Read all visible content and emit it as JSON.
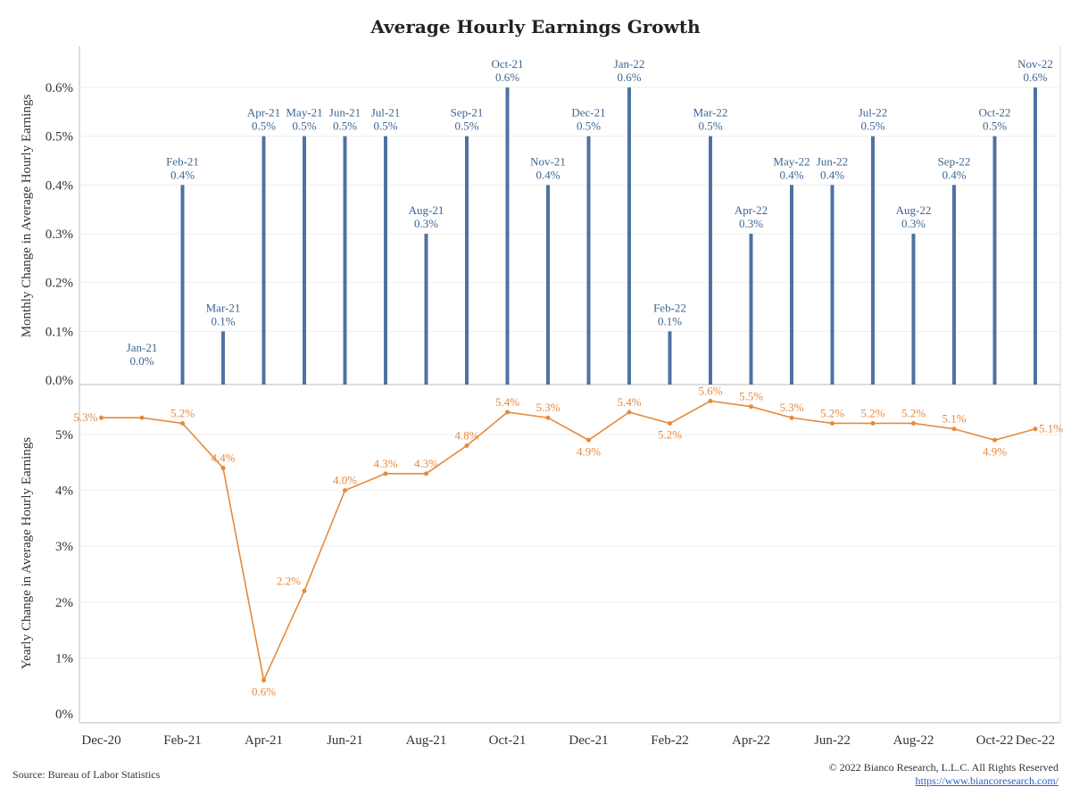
{
  "chart_data": [
    {
      "type": "bar",
      "title": "Average Hourly Earnings Growth",
      "ylabel": "Monthly Change in Average Hourly Earnings",
      "ylim": [
        0,
        0.7
      ],
      "yticks": [
        "0.0%",
        "0.1%",
        "0.2%",
        "0.3%",
        "0.4%",
        "0.5%",
        "0.6%"
      ],
      "color": "#4e73a0",
      "categories": [
        "Jan-21",
        "Feb-21",
        "Mar-21",
        "Apr-21",
        "May-21",
        "Jun-21",
        "Jul-21",
        "Aug-21",
        "Sep-21",
        "Oct-21",
        "Nov-21",
        "Dec-21",
        "Jan-22",
        "Feb-22",
        "Mar-22",
        "Apr-22",
        "May-22",
        "Jun-22",
        "Jul-22",
        "Aug-22",
        "Sep-22",
        "Oct-22",
        "Nov-22"
      ],
      "values": [
        0.0,
        0.4,
        0.1,
        0.5,
        0.5,
        0.5,
        0.5,
        0.3,
        0.5,
        0.6,
        0.4,
        0.5,
        0.6,
        0.1,
        0.5,
        0.3,
        0.4,
        0.4,
        0.5,
        0.3,
        0.4,
        0.5,
        0.6
      ],
      "value_labels": [
        "0.0%",
        "0.4%",
        "0.1%",
        "0.5%",
        "0.5%",
        "0.5%",
        "0.5%",
        "0.3%",
        "0.5%",
        "0.6%",
        "0.4%",
        "0.5%",
        "0.6%",
        "0.1%",
        "0.5%",
        "0.3%",
        "0.4%",
        "0.4%",
        "0.5%",
        "0.3%",
        "0.4%",
        "0.5%",
        "0.6%"
      ]
    },
    {
      "type": "line",
      "ylabel": "Yearly Change in Average Hourly Earnings",
      "ylim": [
        0,
        5.8
      ],
      "yticks": [
        "0%",
        "1%",
        "2%",
        "3%",
        "4%",
        "5%"
      ],
      "color": "#e8893a",
      "x": [
        "Dec-20",
        "Jan-21",
        "Feb-21",
        "Mar-21",
        "Apr-21",
        "May-21",
        "Jun-21",
        "Jul-21",
        "Aug-21",
        "Sep-21",
        "Oct-21",
        "Nov-21",
        "Dec-21",
        "Jan-22",
        "Feb-22",
        "Mar-22",
        "Apr-22",
        "May-22",
        "Jun-22",
        "Jul-22",
        "Aug-22",
        "Sep-22",
        "Oct-22",
        "Nov-22"
      ],
      "values": [
        5.3,
        5.3,
        5.2,
        4.4,
        0.6,
        2.2,
        4.0,
        4.3,
        4.3,
        4.8,
        5.4,
        5.3,
        4.9,
        5.4,
        5.2,
        5.6,
        5.5,
        5.3,
        5.2,
        5.2,
        5.2,
        5.1,
        4.9,
        5.1
      ],
      "point_labels": [
        "5.3%",
        "",
        "5.2%",
        "4.4%",
        "0.6%",
        "2.2%",
        "4.0%",
        "4.3%",
        "4.3%",
        "4.8%",
        "5.4%",
        "5.3%",
        "4.9%",
        "5.4%",
        "5.2%",
        "5.6%",
        "5.5%",
        "5.3%",
        "5.2%",
        "5.2%",
        "5.2%",
        "5.1%",
        "4.9%",
        "5.1%"
      ]
    }
  ],
  "x_axis": {
    "ticks": [
      "Dec-20",
      "Feb-21",
      "Apr-21",
      "Jun-21",
      "Aug-21",
      "Oct-21",
      "Dec-21",
      "Feb-22",
      "Apr-22",
      "Jun-22",
      "Aug-22",
      "Oct-22",
      "Dec-22"
    ]
  },
  "footer": {
    "source": "Source: Bureau of Labor Statistics",
    "copyright": "© 2022 Bianco Research, L.L.C. All Rights Reserved",
    "url": "https://www.biancoresearch.com/"
  }
}
